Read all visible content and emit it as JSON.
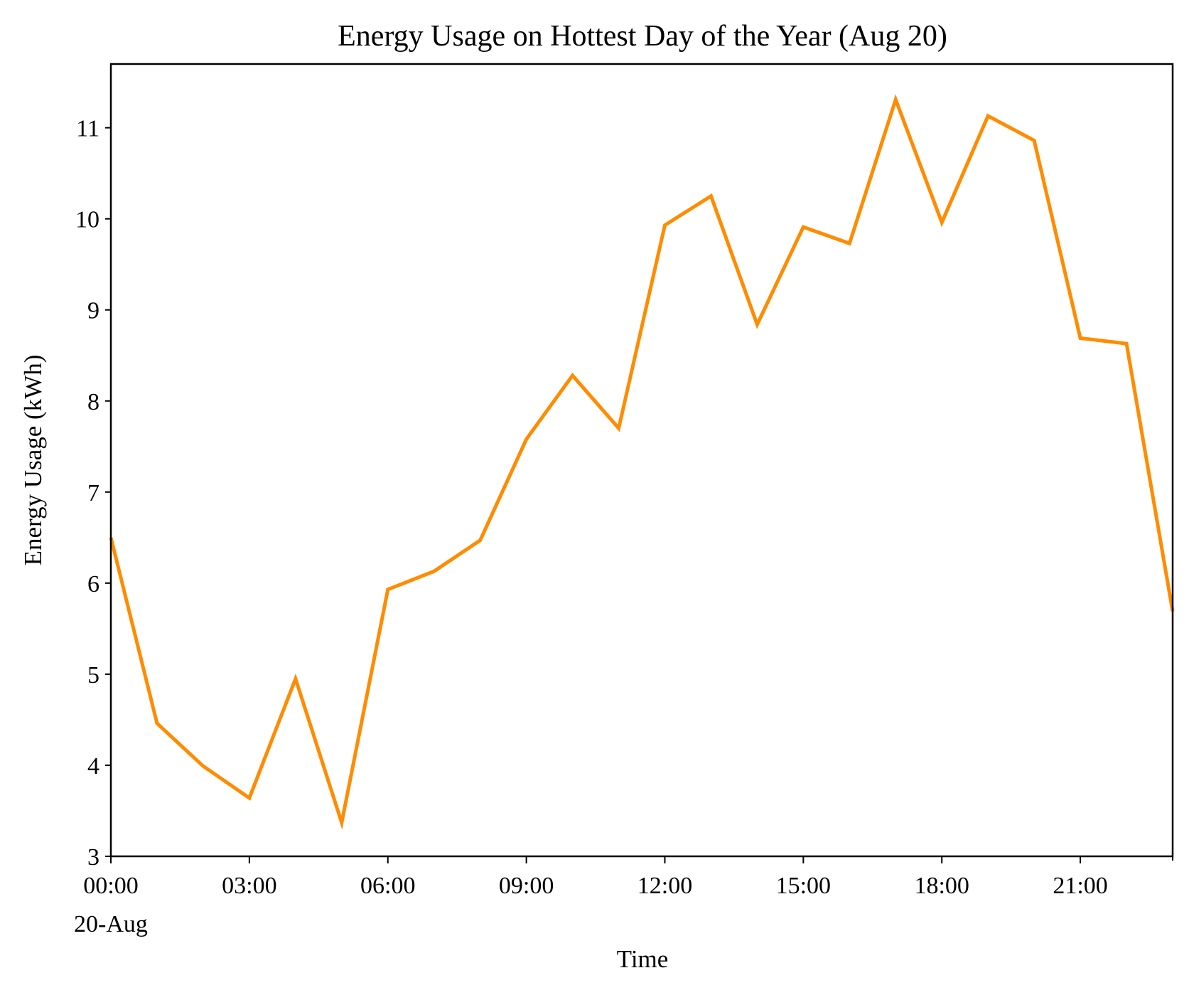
{
  "chart_data": {
    "type": "line",
    "title": "Energy Usage on Hottest Day of the Year (Aug 20)",
    "xlabel": "Time",
    "ylabel": "Energy Usage (kWh)",
    "x_date_label": "20-Aug",
    "x": [
      "00:00",
      "01:00",
      "02:00",
      "03:00",
      "04:00",
      "05:00",
      "06:00",
      "07:00",
      "08:00",
      "09:00",
      "10:00",
      "11:00",
      "12:00",
      "13:00",
      "14:00",
      "15:00",
      "16:00",
      "17:00",
      "18:00",
      "19:00",
      "20:00",
      "21:00",
      "22:00",
      "23:00"
    ],
    "xticks": [
      "00:00",
      "03:00",
      "06:00",
      "09:00",
      "12:00",
      "15:00",
      "18:00",
      "21:00"
    ],
    "xlim": [
      "00:00",
      "23:00"
    ],
    "yticks": [
      3,
      4,
      5,
      6,
      7,
      8,
      9,
      10,
      11
    ],
    "ylim": [
      3,
      11.7
    ],
    "series": [
      {
        "color": "#ff8c00",
        "values": [
          6.5,
          4.46,
          3.99,
          3.64,
          4.95,
          3.37,
          5.93,
          6.13,
          6.47,
          7.58,
          8.28,
          7.7,
          9.93,
          10.25,
          8.84,
          9.91,
          9.73,
          11.31,
          9.96,
          11.13,
          10.86,
          8.69,
          8.63,
          5.69
        ]
      }
    ],
    "grid": false,
    "legend": "none"
  }
}
